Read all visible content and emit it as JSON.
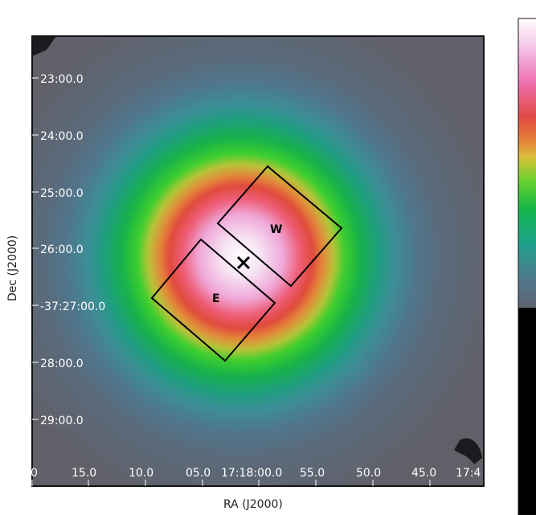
{
  "image": {
    "xlabel": "RA (J2000)",
    "ylabel": "Dec (J2000)",
    "dec_ticks": [
      "23:00.0",
      "24:00.0",
      "25:00.0",
      "26:00.0",
      "-37:27:00.0",
      "28:00.0",
      "29:00.0"
    ],
    "ra_ticks": [
      "0",
      "15.0",
      "10.0",
      "05.0",
      "17:18:00.0",
      "55.0",
      "50.0",
      "45.0",
      "17:4"
    ],
    "regions": [
      {
        "label": "W"
      },
      {
        "label": "E"
      }
    ],
    "colormap": "cubehelix-like (grey → teal → green → yellow → red → pink → white)"
  }
}
